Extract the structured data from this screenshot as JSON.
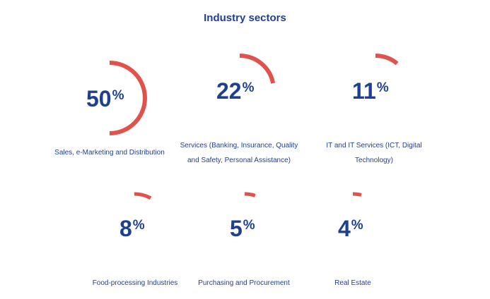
{
  "title": "Industry sectors",
  "colors": {
    "accent": "#e0524b",
    "text": "#1f3f8f"
  },
  "sectors": [
    {
      "value": 50,
      "percent_sign": "%",
      "label": "Sales, e-Marketing and Distribution"
    },
    {
      "value": 22,
      "percent_sign": "%",
      "label": "Services (Banking, Insurance, Quality and Safety, Personal Assistance)",
      "label_lines": [
        "Services (Banking, Insurance, Quality",
        "and Safety, Personal Assistance)"
      ]
    },
    {
      "value": 11,
      "percent_sign": "%",
      "label": "IT and IT Services (ICT, Digital Technology)",
      "label_lines": [
        "IT and IT Services (ICT, Digital",
        "Technology)"
      ]
    },
    {
      "value": 8,
      "percent_sign": "%",
      "label": "Food-processing Industries"
    },
    {
      "value": 5,
      "percent_sign": "%",
      "label": "Purchasing and Procurement"
    },
    {
      "value": 4,
      "percent_sign": "%",
      "label": "Real Estate"
    }
  ]
}
